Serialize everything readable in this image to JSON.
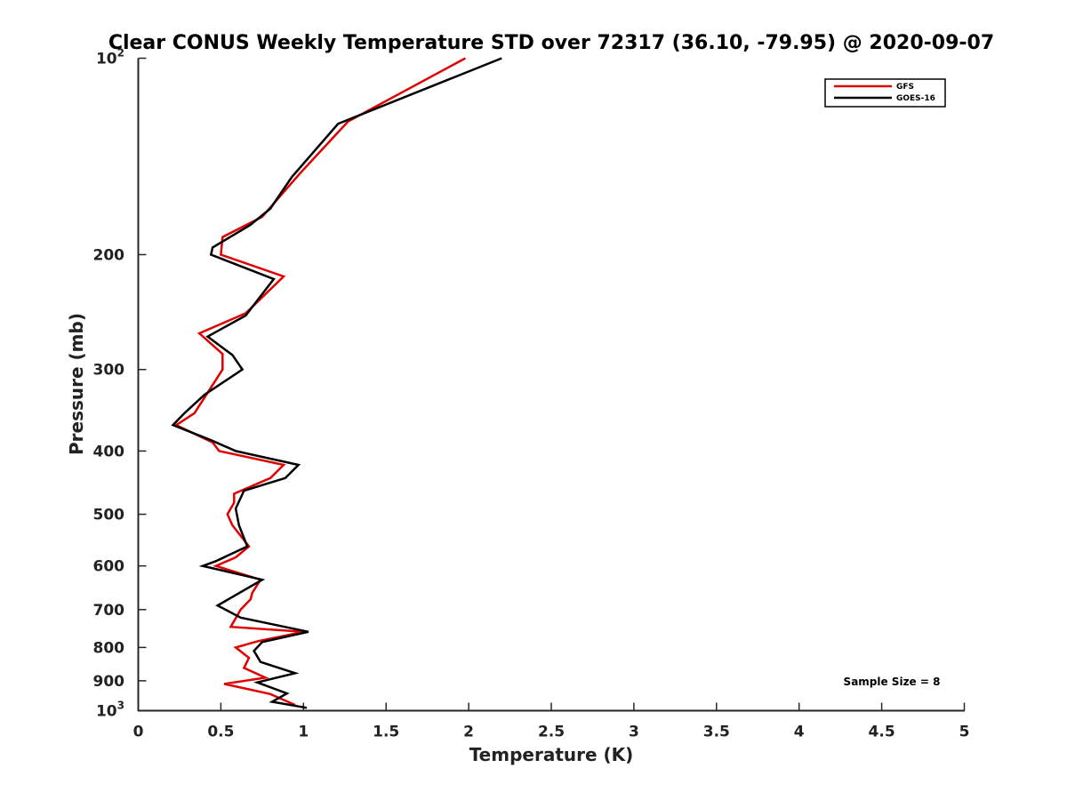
{
  "chart_data": {
    "type": "line",
    "title": "Clear CONUS Weekly Temperature STD over 72317 (36.10, -79.95) @ 2020-09-07",
    "xlabel": "Temperature (K)",
    "ylabel": "Pressure (mb)",
    "xlim": [
      0,
      5
    ],
    "ylim": [
      100,
      1000
    ],
    "yscale": "log",
    "y_reversed": true,
    "x_ticks": [
      "0",
      "0.5",
      "1",
      "1.5",
      "2",
      "2.5",
      "3",
      "3.5",
      "4",
      "4.5",
      "5"
    ],
    "y_ticks": [
      {
        "value": 100,
        "base": "10",
        "exp": "2"
      },
      {
        "value": 200,
        "label": "200"
      },
      {
        "value": 300,
        "label": "300"
      },
      {
        "value": 400,
        "label": "400"
      },
      {
        "value": 500,
        "label": "500"
      },
      {
        "value": 600,
        "label": "600"
      },
      {
        "value": 700,
        "label": "700"
      },
      {
        "value": 800,
        "label": "800"
      },
      {
        "value": 900,
        "label": "900"
      },
      {
        "value": 1000,
        "base": "10",
        "exp": "3"
      }
    ],
    "grid": false,
    "legend_position": "top-right",
    "annotation": "Sample Size = 8",
    "series": [
      {
        "name": "GFS",
        "color": "#e00000",
        "points": [
          [
            1.98,
            100
          ],
          [
            1.27,
            125
          ],
          [
            0.98,
            150
          ],
          [
            0.75,
            175
          ],
          [
            0.51,
            188
          ],
          [
            0.5,
            200
          ],
          [
            0.88,
            216
          ],
          [
            0.65,
            246
          ],
          [
            0.37,
            264
          ],
          [
            0.51,
            284
          ],
          [
            0.51,
            300
          ],
          [
            0.34,
            350
          ],
          [
            0.23,
            365
          ],
          [
            0.45,
            388
          ],
          [
            0.49,
            400
          ],
          [
            0.88,
            420
          ],
          [
            0.8,
            440
          ],
          [
            0.58,
            465
          ],
          [
            0.58,
            480
          ],
          [
            0.54,
            500
          ],
          [
            0.57,
            520
          ],
          [
            0.67,
            560
          ],
          [
            0.59,
            582
          ],
          [
            0.47,
            600
          ],
          [
            0.74,
            630
          ],
          [
            0.69,
            660
          ],
          [
            0.68,
            675
          ],
          [
            0.62,
            700
          ],
          [
            0.56,
            744
          ],
          [
            1.0,
            757
          ],
          [
            0.73,
            782
          ],
          [
            0.59,
            800
          ],
          [
            0.67,
            830
          ],
          [
            0.64,
            860
          ],
          [
            0.77,
            890
          ],
          [
            0.52,
            910
          ],
          [
            0.8,
            943
          ],
          [
            0.95,
            980
          ]
        ]
      },
      {
        "name": "GOES-16",
        "color": "#000000",
        "points": [
          [
            2.2,
            100
          ],
          [
            1.21,
            126
          ],
          [
            0.93,
            152
          ],
          [
            0.8,
            170
          ],
          [
            0.68,
            180
          ],
          [
            0.45,
            195
          ],
          [
            0.44,
            200
          ],
          [
            0.82,
            218
          ],
          [
            0.65,
            248
          ],
          [
            0.42,
            267
          ],
          [
            0.57,
            285
          ],
          [
            0.63,
            300
          ],
          [
            0.4,
            328
          ],
          [
            0.28,
            350
          ],
          [
            0.21,
            365
          ],
          [
            0.44,
            385
          ],
          [
            0.59,
            400
          ],
          [
            0.97,
            420
          ],
          [
            0.89,
            440
          ],
          [
            0.64,
            460
          ],
          [
            0.59,
            490
          ],
          [
            0.61,
            520
          ],
          [
            0.66,
            560
          ],
          [
            0.47,
            590
          ],
          [
            0.39,
            600
          ],
          [
            0.75,
            630
          ],
          [
            0.48,
            690
          ],
          [
            0.62,
            720
          ],
          [
            1.03,
            757
          ],
          [
            0.75,
            785
          ],
          [
            0.7,
            810
          ],
          [
            0.74,
            842
          ],
          [
            0.95,
            876
          ],
          [
            0.72,
            905
          ],
          [
            0.9,
            941
          ],
          [
            0.81,
            969
          ],
          [
            1.02,
            990
          ]
        ]
      }
    ]
  }
}
